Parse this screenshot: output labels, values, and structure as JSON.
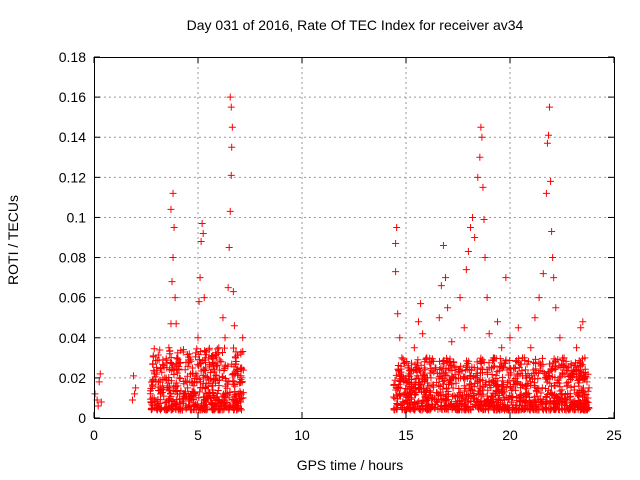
{
  "chart_data": {
    "type": "scatter",
    "title": "Day 031 of 2016, Rate Of TEC Index for receiver av34",
    "xlabel": "GPS time / hours",
    "ylabel": "ROTI / TECUs",
    "xlim": [
      0,
      25
    ],
    "ylim": [
      0,
      0.18
    ],
    "x_ticks": [
      "0",
      "5",
      "10",
      "15",
      "20",
      "25"
    ],
    "y_ticks": [
      "0",
      "0.02",
      "0.04",
      "0.06",
      "0.08",
      "0.1",
      "0.12",
      "0.14",
      "0.16",
      "0.18"
    ],
    "grid": true,
    "marker": "+",
    "color": "#ff0000",
    "series": [
      {
        "points": [
          [
            0.05,
            0.012
          ],
          [
            0.15,
            0.009
          ],
          [
            0.25,
            0.018
          ],
          [
            0.3,
            0.022
          ],
          [
            0.35,
            0.008
          ],
          [
            0.2,
            0.006
          ],
          [
            1.9,
            0.021
          ],
          [
            1.95,
            0.012
          ],
          [
            2.0,
            0.015
          ],
          [
            1.85,
            0.009
          ],
          [
            2.8,
            0.01
          ],
          [
            2.9,
            0.022
          ],
          [
            3.0,
            0.005
          ],
          [
            3.1,
            0.018
          ],
          [
            3.2,
            0.012
          ],
          [
            3.3,
            0.016
          ],
          [
            3.4,
            0.02
          ],
          [
            3.5,
            0.025
          ],
          [
            3.6,
            0.035
          ],
          [
            3.7,
            0.047
          ],
          [
            3.75,
            0.068
          ],
          [
            3.7,
            0.104
          ],
          [
            3.8,
            0.112
          ],
          [
            3.85,
            0.095
          ],
          [
            3.8,
            0.08
          ],
          [
            3.9,
            0.06
          ],
          [
            3.95,
            0.047
          ],
          [
            4.0,
            0.03
          ],
          [
            4.1,
            0.02
          ],
          [
            4.3,
            0.012
          ],
          [
            4.5,
            0.015
          ],
          [
            4.7,
            0.018
          ],
          [
            4.9,
            0.022
          ],
          [
            5.0,
            0.04
          ],
          [
            5.05,
            0.058
          ],
          [
            5.1,
            0.07
          ],
          [
            5.15,
            0.088
          ],
          [
            5.2,
            0.097
          ],
          [
            5.25,
            0.092
          ],
          [
            5.3,
            0.06
          ],
          [
            5.4,
            0.033
          ],
          [
            5.5,
            0.019
          ],
          [
            5.6,
            0.01
          ],
          [
            5.7,
            0.016
          ],
          [
            5.8,
            0.024
          ],
          [
            5.9,
            0.03
          ],
          [
            6.0,
            0.035
          ],
          [
            6.1,
            0.028
          ],
          [
            6.2,
            0.05
          ],
          [
            6.3,
            0.04
          ],
          [
            6.45,
            0.065
          ],
          [
            6.5,
            0.085
          ],
          [
            6.55,
            0.103
          ],
          [
            6.6,
            0.121
          ],
          [
            6.62,
            0.135
          ],
          [
            6.65,
            0.145
          ],
          [
            6.6,
            0.155
          ],
          [
            6.55,
            0.16
          ],
          [
            6.7,
            0.063
          ],
          [
            6.75,
            0.046
          ],
          [
            6.8,
            0.03
          ],
          [
            6.9,
            0.022
          ],
          [
            7.0,
            0.018
          ],
          [
            7.1,
            0.025
          ],
          [
            7.15,
            0.04
          ],
          [
            6.95,
            0.012
          ],
          [
            7.05,
            0.008
          ],
          [
            14.5,
            0.087
          ],
          [
            14.55,
            0.095
          ],
          [
            14.5,
            0.073
          ],
          [
            14.6,
            0.052
          ],
          [
            14.7,
            0.04
          ],
          [
            14.8,
            0.03
          ],
          [
            14.9,
            0.018
          ],
          [
            15.0,
            0.012
          ],
          [
            15.2,
            0.022
          ],
          [
            15.4,
            0.035
          ],
          [
            15.6,
            0.048
          ],
          [
            15.7,
            0.057
          ],
          [
            15.8,
            0.042
          ],
          [
            16.0,
            0.03
          ],
          [
            16.2,
            0.02
          ],
          [
            16.4,
            0.025
          ],
          [
            16.6,
            0.05
          ],
          [
            16.7,
            0.066
          ],
          [
            16.8,
            0.086
          ],
          [
            16.9,
            0.07
          ],
          [
            17.0,
            0.055
          ],
          [
            17.2,
            0.038
          ],
          [
            17.4,
            0.025
          ],
          [
            17.6,
            0.06
          ],
          [
            17.8,
            0.045
          ],
          [
            17.9,
            0.074
          ],
          [
            18.0,
            0.083
          ],
          [
            18.1,
            0.095
          ],
          [
            18.2,
            0.1
          ],
          [
            18.3,
            0.09
          ],
          [
            18.45,
            0.12
          ],
          [
            18.55,
            0.13
          ],
          [
            18.6,
            0.145
          ],
          [
            18.65,
            0.14
          ],
          [
            18.7,
            0.115
          ],
          [
            18.75,
            0.099
          ],
          [
            18.8,
            0.08
          ],
          [
            18.9,
            0.06
          ],
          [
            19.0,
            0.042
          ],
          [
            19.2,
            0.03
          ],
          [
            19.4,
            0.048
          ],
          [
            19.6,
            0.035
          ],
          [
            19.8,
            0.07
          ],
          [
            20.0,
            0.04
          ],
          [
            20.2,
            0.025
          ],
          [
            20.4,
            0.045
          ],
          [
            20.6,
            0.03
          ],
          [
            20.8,
            0.02
          ],
          [
            21.0,
            0.035
          ],
          [
            21.2,
            0.05
          ],
          [
            21.4,
            0.06
          ],
          [
            21.6,
            0.072
          ],
          [
            21.75,
            0.112
          ],
          [
            21.8,
            0.137
          ],
          [
            21.85,
            0.141
          ],
          [
            21.9,
            0.155
          ],
          [
            21.95,
            0.118
          ],
          [
            22.0,
            0.093
          ],
          [
            22.05,
            0.08
          ],
          [
            22.1,
            0.07
          ],
          [
            22.2,
            0.055
          ],
          [
            22.4,
            0.04
          ],
          [
            22.6,
            0.03
          ],
          [
            22.8,
            0.025
          ],
          [
            23.0,
            0.02
          ],
          [
            23.2,
            0.035
          ],
          [
            23.4,
            0.045
          ],
          [
            23.5,
            0.048
          ],
          [
            23.6,
            0.03
          ],
          [
            23.7,
            0.018
          ],
          [
            23.75,
            0.01
          ],
          [
            23.8,
            0.015
          ]
        ]
      }
    ],
    "dense_bands": [
      {
        "x_from": 2.7,
        "x_to": 7.2,
        "y_low": 0.004,
        "y_high": 0.035
      },
      {
        "x_from": 14.4,
        "x_to": 23.8,
        "y_low": 0.004,
        "y_high": 0.03
      }
    ]
  }
}
